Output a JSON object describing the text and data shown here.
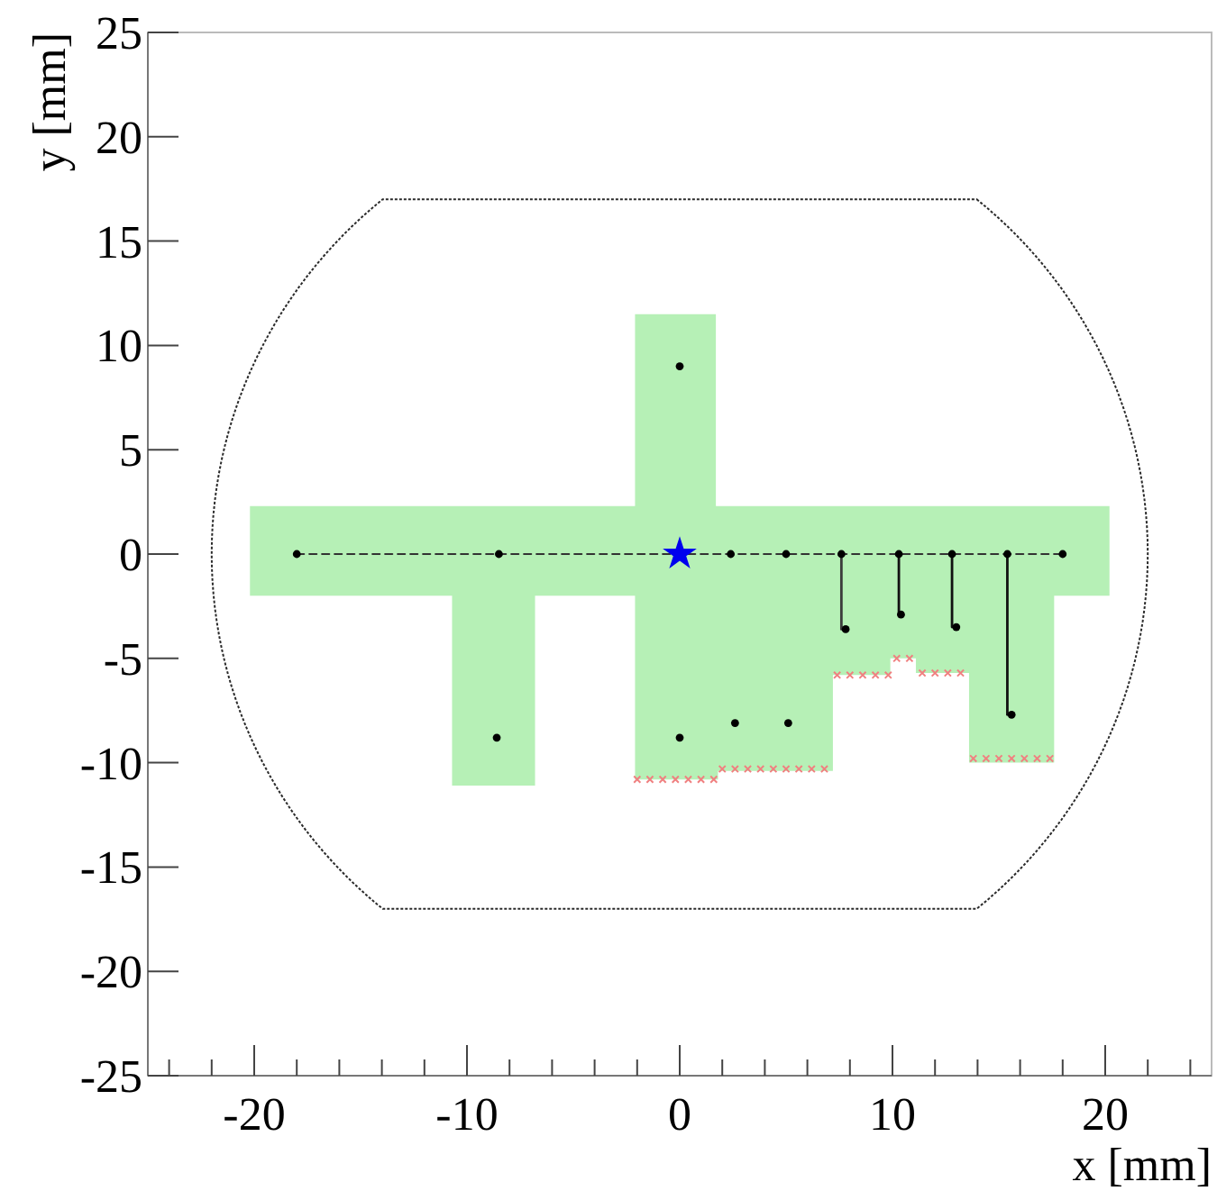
{
  "chart_data": {
    "type": "scatter",
    "xlabel": "x [mm]",
    "ylabel": "y [mm]",
    "xlim": [
      -25,
      25
    ],
    "ylim": [
      -25,
      25
    ],
    "xticks": [
      {
        "value": -24,
        "label": null
      },
      {
        "value": -22,
        "label": null
      },
      -20,
      {
        "value": -18,
        "label": null
      },
      {
        "value": -16,
        "label": null
      },
      {
        "value": -14,
        "label": null
      },
      {
        "value": -12,
        "label": null
      },
      -10,
      {
        "value": -8,
        "label": null
      },
      {
        "value": -6,
        "label": null
      },
      {
        "value": -4,
        "label": null
      },
      {
        "value": -2,
        "label": null
      },
      0,
      {
        "value": 2,
        "label": null
      },
      {
        "value": 4,
        "label": null
      },
      {
        "value": 6,
        "label": null
      },
      {
        "value": 8,
        "label": null
      },
      10,
      {
        "value": 12,
        "label": null
      },
      {
        "value": 14,
        "label": null
      },
      {
        "value": 16,
        "label": null
      },
      {
        "value": 18,
        "label": null
      },
      20,
      {
        "value": 22,
        "label": null
      },
      {
        "value": 24,
        "label": null
      }
    ],
    "yticks": [
      -25,
      -20,
      -15,
      -10,
      -5,
      0,
      5,
      10,
      15,
      20,
      25
    ],
    "grid": false,
    "series": [
      {
        "type": "area",
        "color": "#b6f0b6",
        "x": [
          -20.2,
          -2.1,
          -2.1,
          1.7,
          1.7,
          20.2
        ],
        "values": [
          2.3,
          2.3,
          11.5,
          11.5,
          2.3,
          2.3
        ]
      },
      {
        "type": "area",
        "color": "#b6f0b6",
        "x": [
          -20.2,
          -10.7,
          -10.7,
          -6.8,
          -6.8,
          -2.1,
          -2.1,
          1.8,
          1.8,
          7.2,
          7.2,
          9.9,
          9.9,
          11.1,
          11.1,
          13.6,
          13.6,
          17.6,
          17.6,
          20.2
        ],
        "values": [
          -2.0,
          -2.0,
          -11.1,
          -11.1,
          -2.0,
          -2.0,
          -10.8,
          -10.8,
          -10.4,
          -10.4,
          -5.8,
          -5.8,
          -5.0,
          -5.0,
          -5.7,
          -5.7,
          -10.0,
          -10.0,
          -2.0,
          -2.0
        ]
      },
      {
        "type": "line",
        "color": "#333333",
        "line_style": "dashed",
        "x": [
          -18,
          18
        ],
        "values": [
          0,
          0
        ]
      },
      {
        "type": "line",
        "color": "#3c3c3c",
        "line_style": "solid",
        "x": [
          7.6,
          7.6
        ],
        "values": [
          0,
          -3.6
        ]
      },
      {
        "type": "line",
        "color": "#111111",
        "line_style": "solid",
        "x": [
          10.3,
          10.3
        ],
        "values": [
          0,
          -2.9
        ]
      },
      {
        "type": "line",
        "color": "#111111",
        "line_style": "solid",
        "x": [
          12.8,
          12.8
        ],
        "values": [
          0,
          -3.5
        ]
      },
      {
        "type": "line",
        "color": "#111111",
        "line_style": "solid",
        "x": [
          15.4,
          15.4
        ],
        "values": [
          0,
          -7.7
        ]
      },
      {
        "marker": "circle",
        "color": "#000000",
        "x": [
          -18,
          -8.5,
          2.4,
          5.0,
          7.6,
          10.3,
          12.8,
          15.4,
          18.0,
          0,
          -8.6,
          0,
          2.6,
          5.1,
          7.8,
          10.4,
          13.0,
          15.6
        ],
        "values": [
          0,
          0,
          0,
          0,
          0,
          0,
          0,
          0,
          0,
          9.0,
          -8.8,
          -8.8,
          -8.1,
          -8.1,
          -3.6,
          -2.9,
          -3.5,
          -7.7
        ]
      },
      {
        "marker": "cross",
        "color": "#f08080",
        "x": [
          -2.0,
          -1.4,
          -0.8,
          -0.2,
          0.4,
          1.0,
          1.6,
          2.0,
          2.6,
          3.2,
          3.8,
          4.4,
          5.0,
          5.6,
          6.2,
          6.8,
          7.4,
          8.0,
          8.6,
          9.2,
          9.8,
          10.2,
          10.8,
          11.4,
          12.0,
          12.6,
          13.2,
          13.8,
          14.4,
          15.0,
          15.6,
          16.2,
          16.8,
          17.4
        ],
        "values": [
          -10.8,
          -10.8,
          -10.8,
          -10.8,
          -10.8,
          -10.8,
          -10.8,
          -10.3,
          -10.3,
          -10.3,
          -10.3,
          -10.3,
          -10.3,
          -10.3,
          -10.3,
          -10.3,
          -5.8,
          -5.8,
          -5.8,
          -5.8,
          -5.8,
          -5.0,
          -5.0,
          -5.7,
          -5.7,
          -5.7,
          -5.7,
          -9.8,
          -9.8,
          -9.8,
          -9.8,
          -9.8,
          -9.8,
          -9.8
        ]
      },
      {
        "marker": "star",
        "color": "#0000ee",
        "x": [
          0
        ],
        "values": [
          0
        ]
      }
    ]
  }
}
